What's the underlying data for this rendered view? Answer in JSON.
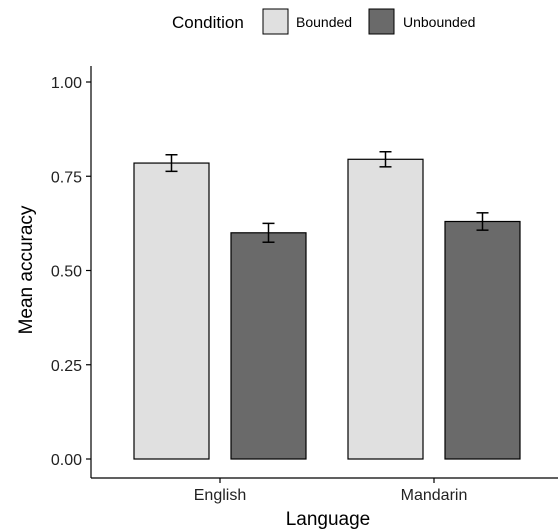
{
  "chart_data": {
    "type": "bar",
    "xlabel": "Language",
    "ylabel": "Mean accuracy",
    "categories": [
      "English",
      "Mandarin"
    ],
    "ylim": [
      0,
      1.05
    ],
    "yticks": [
      0,
      0.25,
      0.5,
      0.75,
      1.0
    ],
    "ytick_labels": [
      "0.00",
      "0.25",
      "0.50",
      "0.75",
      "1.00"
    ],
    "legend": {
      "title": "Condition",
      "position": "top"
    },
    "series": [
      {
        "name": "Bounded",
        "color": "#e0e0e0",
        "values": [
          0.785,
          0.795
        ],
        "errors": [
          0.022,
          0.02
        ]
      },
      {
        "name": "Unbounded",
        "color": "#6a6a6a",
        "values": [
          0.6,
          0.63
        ],
        "errors": [
          0.025,
          0.023
        ]
      }
    ],
    "grid": false
  }
}
